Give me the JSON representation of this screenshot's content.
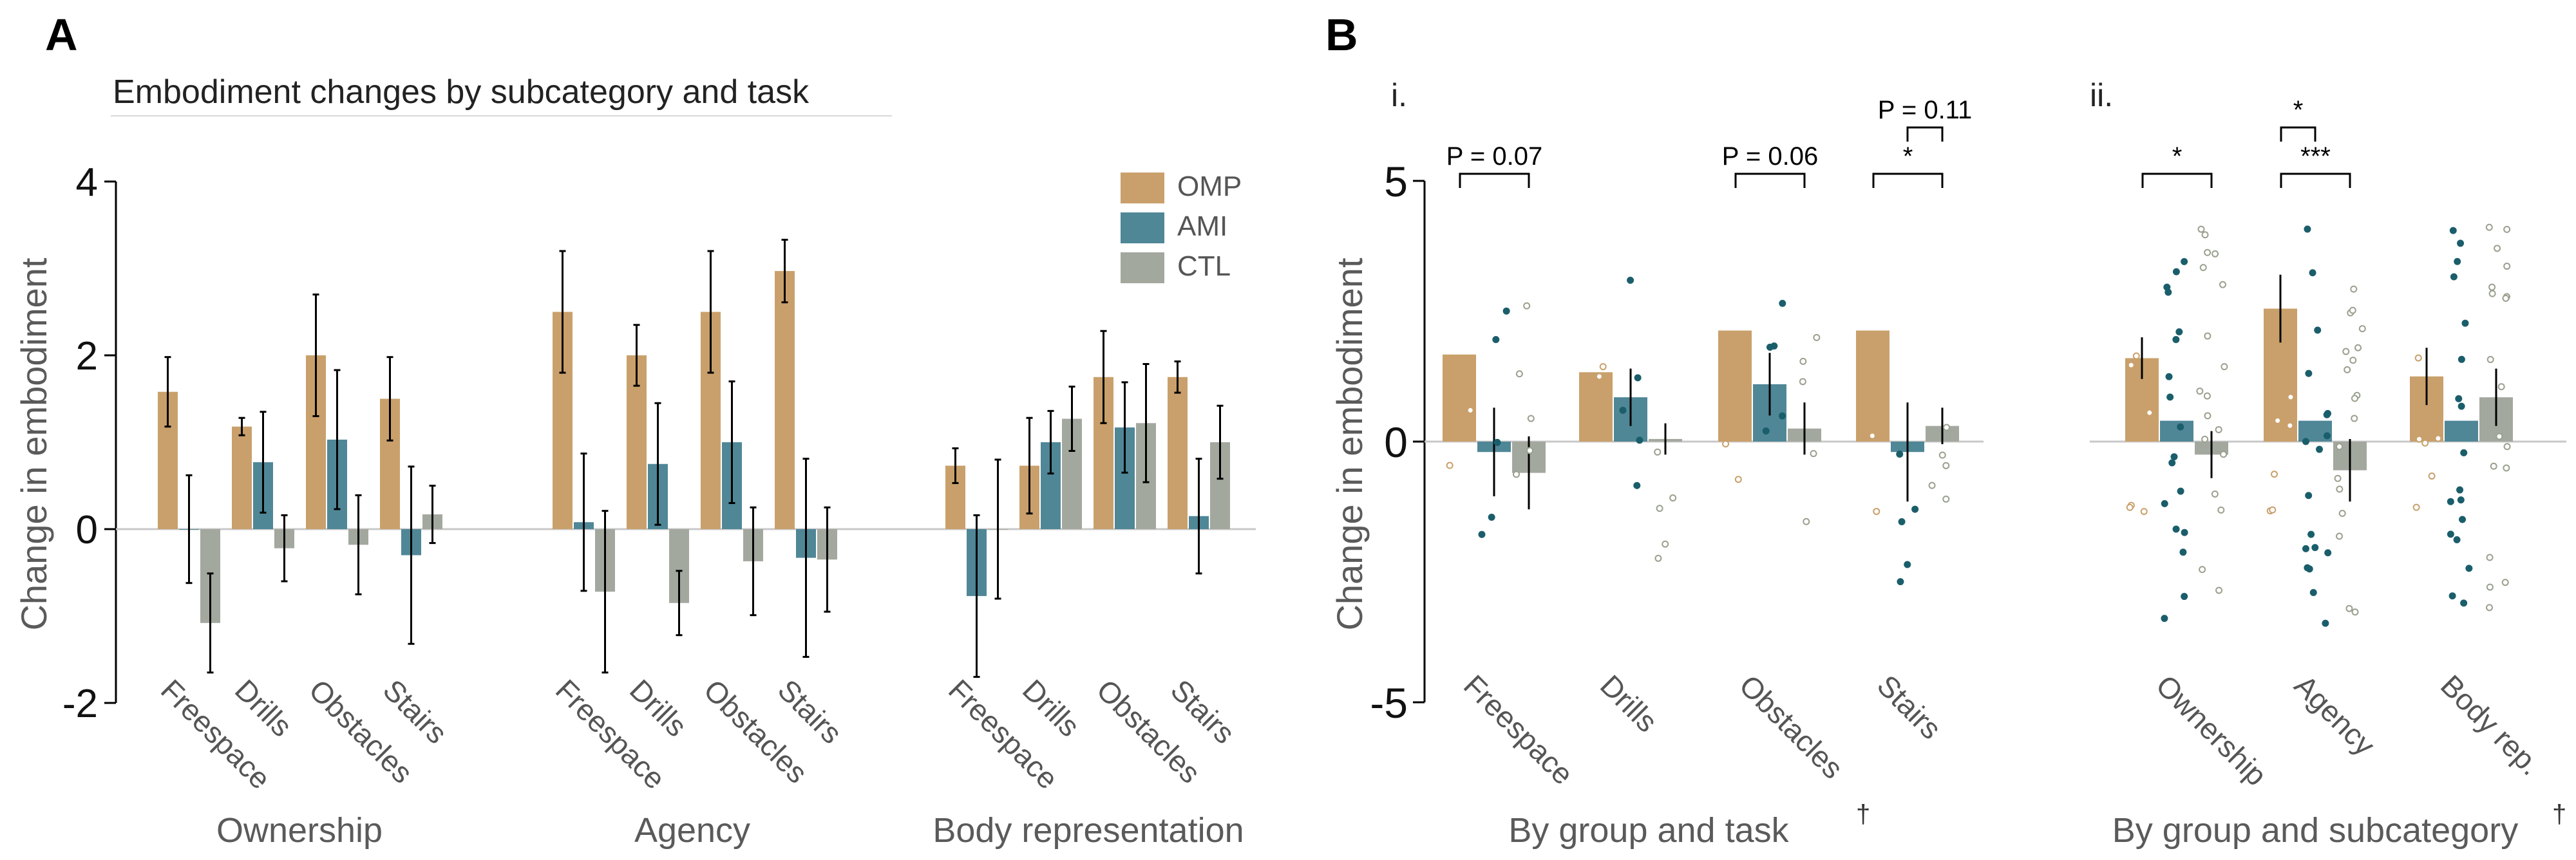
{
  "colors": {
    "OMP": "#c9a06b",
    "AMI": "#4f8797",
    "CTL": "#a3a89f",
    "axis": "#000000",
    "text": "#5a5a5a"
  },
  "chart_data": [
    {
      "panel": "A",
      "type": "bar",
      "title": "Embodiment changes by subcategory and task",
      "ylabel": "Change in embodiment",
      "ylim": [
        -2,
        4
      ],
      "yticks": [
        "-2",
        "0",
        "2",
        "4"
      ],
      "legend": {
        "position": "top-right",
        "entries": [
          "OMP",
          "AMI",
          "CTL"
        ]
      },
      "groups": [
        {
          "label": "Ownership",
          "tasks": [
            "Freespace",
            "Drills",
            "Obstacles",
            "Stairs"
          ],
          "OMP": [
            [
              1.58,
              0.4
            ],
            [
              1.18,
              0.1
            ],
            [
              2.0,
              0.7
            ],
            [
              1.5,
              0.48
            ]
          ],
          "AMI": [
            [
              0.0,
              0.62
            ],
            [
              0.77,
              0.58
            ],
            [
              1.03,
              0.8
            ],
            [
              -0.3,
              1.02
            ]
          ],
          "CTL": [
            [
              -1.08,
              0.57
            ],
            [
              -0.22,
              0.38
            ],
            [
              -0.18,
              0.57
            ],
            [
              0.17,
              0.33
            ]
          ]
        },
        {
          "label": "Agency",
          "tasks": [
            "Freespace",
            "Drills",
            "Obstacles",
            "Stairs"
          ],
          "OMP": [
            [
              2.5,
              0.7
            ],
            [
              2.0,
              0.35
            ],
            [
              2.5,
              0.7
            ],
            [
              2.97,
              0.36
            ]
          ],
          "AMI": [
            [
              0.08,
              0.79
            ],
            [
              0.75,
              0.7
            ],
            [
              1.0,
              0.7
            ],
            [
              -0.33,
              1.14
            ]
          ],
          "CTL": [
            [
              -0.72,
              0.93
            ],
            [
              -0.85,
              0.37
            ],
            [
              -0.37,
              0.62
            ],
            [
              -0.35,
              0.6
            ]
          ]
        },
        {
          "label": "Body representation",
          "tasks": [
            "Freespace",
            "Drills",
            "Obstacles",
            "Stairs"
          ],
          "OMP": [
            [
              0.73,
              0.2
            ],
            [
              0.73,
              0.55
            ],
            [
              1.75,
              0.53
            ],
            [
              1.75,
              0.18
            ]
          ],
          "AMI": [
            [
              -0.77,
              0.93
            ],
            [
              1.0,
              0.36
            ],
            [
              1.17,
              0.52
            ],
            [
              0.15,
              0.66
            ]
          ],
          "CTL": [
            [
              0.0,
              0.8
            ],
            [
              1.27,
              0.37
            ],
            [
              1.22,
              0.68
            ],
            [
              1.0,
              0.42
            ]
          ]
        }
      ]
    },
    {
      "panel": "B.i",
      "type": "bar",
      "subtitle": "i.",
      "xlabel": "By group and task",
      "xlabel_mark": "†",
      "ylabel": "Change in embodiment",
      "ylim": [
        -5,
        5
      ],
      "yticks": [
        "5",
        "0",
        "-5"
      ],
      "categories": [
        "Freespace",
        "Drills",
        "Obstacles",
        "Stairs"
      ],
      "series": [
        {
          "name": "OMP",
          "values": [
            1.67,
            1.33,
            2.13,
            2.13
          ]
        },
        {
          "name": "AMI",
          "values": [
            -0.2,
            0.85,
            1.1,
            -0.2
          ]
        },
        {
          "name": "CTL",
          "values": [
            -0.6,
            0.05,
            0.25,
            0.3
          ]
        }
      ],
      "significance": [
        {
          "category": "Freespace",
          "from": "OMP",
          "to": "CTL",
          "label": "P = 0.07"
        },
        {
          "category": "Obstacles",
          "from": "OMP",
          "to": "CTL",
          "label": "P = 0.06"
        },
        {
          "category": "Stairs",
          "from": "OMP",
          "to": "CTL",
          "label": "*"
        },
        {
          "category": "Stairs",
          "from": "AMI",
          "to": "CTL",
          "label": "P = 0.11"
        }
      ]
    },
    {
      "panel": "B.ii",
      "type": "bar",
      "subtitle": "ii.",
      "xlabel": "By group and subcategory",
      "xlabel_mark": "†",
      "categories": [
        "Ownership",
        "Agency",
        "Body rep."
      ],
      "series": [
        {
          "name": "OMP",
          "values": [
            1.6,
            2.55,
            1.25
          ]
        },
        {
          "name": "AMI",
          "values": [
            0.4,
            0.4,
            0.4
          ]
        },
        {
          "name": "CTL",
          "values": [
            -0.25,
            -0.55,
            0.85
          ]
        }
      ],
      "significance": [
        {
          "category": "Ownership",
          "from": "OMP",
          "to": "CTL",
          "label": "*"
        },
        {
          "category": "Agency",
          "from": "OMP",
          "to": "CTL",
          "label": "***"
        },
        {
          "category": "Agency",
          "from": "OMP",
          "to": "AMI",
          "label": "*"
        }
      ]
    }
  ],
  "panel_labels": {
    "a": "A",
    "b": "B"
  }
}
